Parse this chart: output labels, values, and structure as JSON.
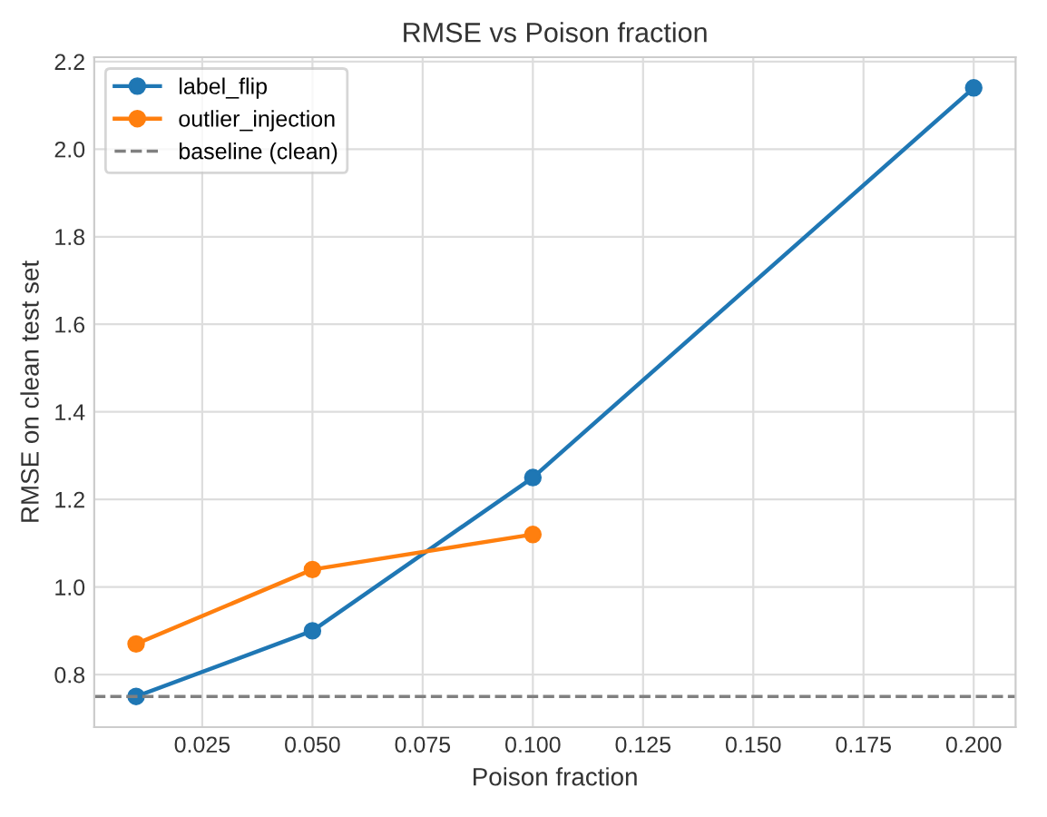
{
  "chart_data": {
    "type": "line",
    "title": "RMSE vs Poison fraction",
    "xlabel": "Poison fraction",
    "ylabel": "RMSE on clean test set",
    "series": [
      {
        "name": "label_flip",
        "color": "#1f77b4",
        "x": [
          0.01,
          0.05,
          0.1,
          0.2
        ],
        "values": [
          0.75,
          0.9,
          1.25,
          2.14
        ]
      },
      {
        "name": "outlier_injection",
        "color": "#ff7f0e",
        "x": [
          0.01,
          0.05,
          0.1
        ],
        "values": [
          0.87,
          1.04,
          1.12
        ]
      }
    ],
    "ref_lines": [
      {
        "axis": "y",
        "value": 0.75,
        "label": "baseline (clean)",
        "color": "#808080",
        "line_style": "dashed"
      }
    ],
    "xlim": [
      0.0005,
      0.2095
    ],
    "xticks": [
      {
        "value": 0.025,
        "label": "0.025"
      },
      {
        "value": 0.05,
        "label": "0.050"
      },
      {
        "value": 0.075,
        "label": "0.075"
      },
      {
        "value": 0.1,
        "label": "0.100"
      },
      {
        "value": 0.125,
        "label": "0.125"
      },
      {
        "value": 0.15,
        "label": "0.150"
      },
      {
        "value": 0.175,
        "label": "0.175"
      },
      {
        "value": 0.2,
        "label": "0.200"
      }
    ],
    "ylim": [
      0.68,
      2.21
    ],
    "yticks": [
      0.8,
      {
        "value": 1.0,
        "label": "1.0"
      },
      1.2,
      1.4,
      1.6,
      1.8,
      {
        "value": 2.0,
        "label": "2.0"
      },
      2.2
    ],
    "grid": true,
    "legend": "top left",
    "marker": "circle",
    "line_style": "solid"
  }
}
